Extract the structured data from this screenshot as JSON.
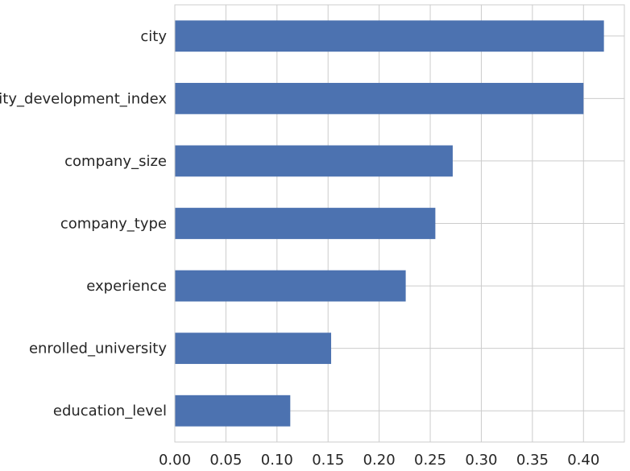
{
  "chart_data": {
    "type": "bar",
    "orientation": "horizontal",
    "title": "",
    "xlabel": "",
    "ylabel": "",
    "categories": [
      "city",
      "city_development_index",
      "company_size",
      "company_type",
      "experience",
      "enrolled_university",
      "education_level"
    ],
    "values": [
      0.42,
      0.4,
      0.272,
      0.255,
      0.226,
      0.153,
      0.113
    ],
    "xlim": [
      0.0,
      0.44
    ],
    "xticks": [
      "0.00",
      "0.05",
      "0.10",
      "0.15",
      "0.20",
      "0.25",
      "0.30",
      "0.35",
      "0.40"
    ],
    "grid": true,
    "legend": "none",
    "bar_color": "#4c72b0",
    "grid_color": "#cccccc",
    "background": "#ffffff"
  }
}
